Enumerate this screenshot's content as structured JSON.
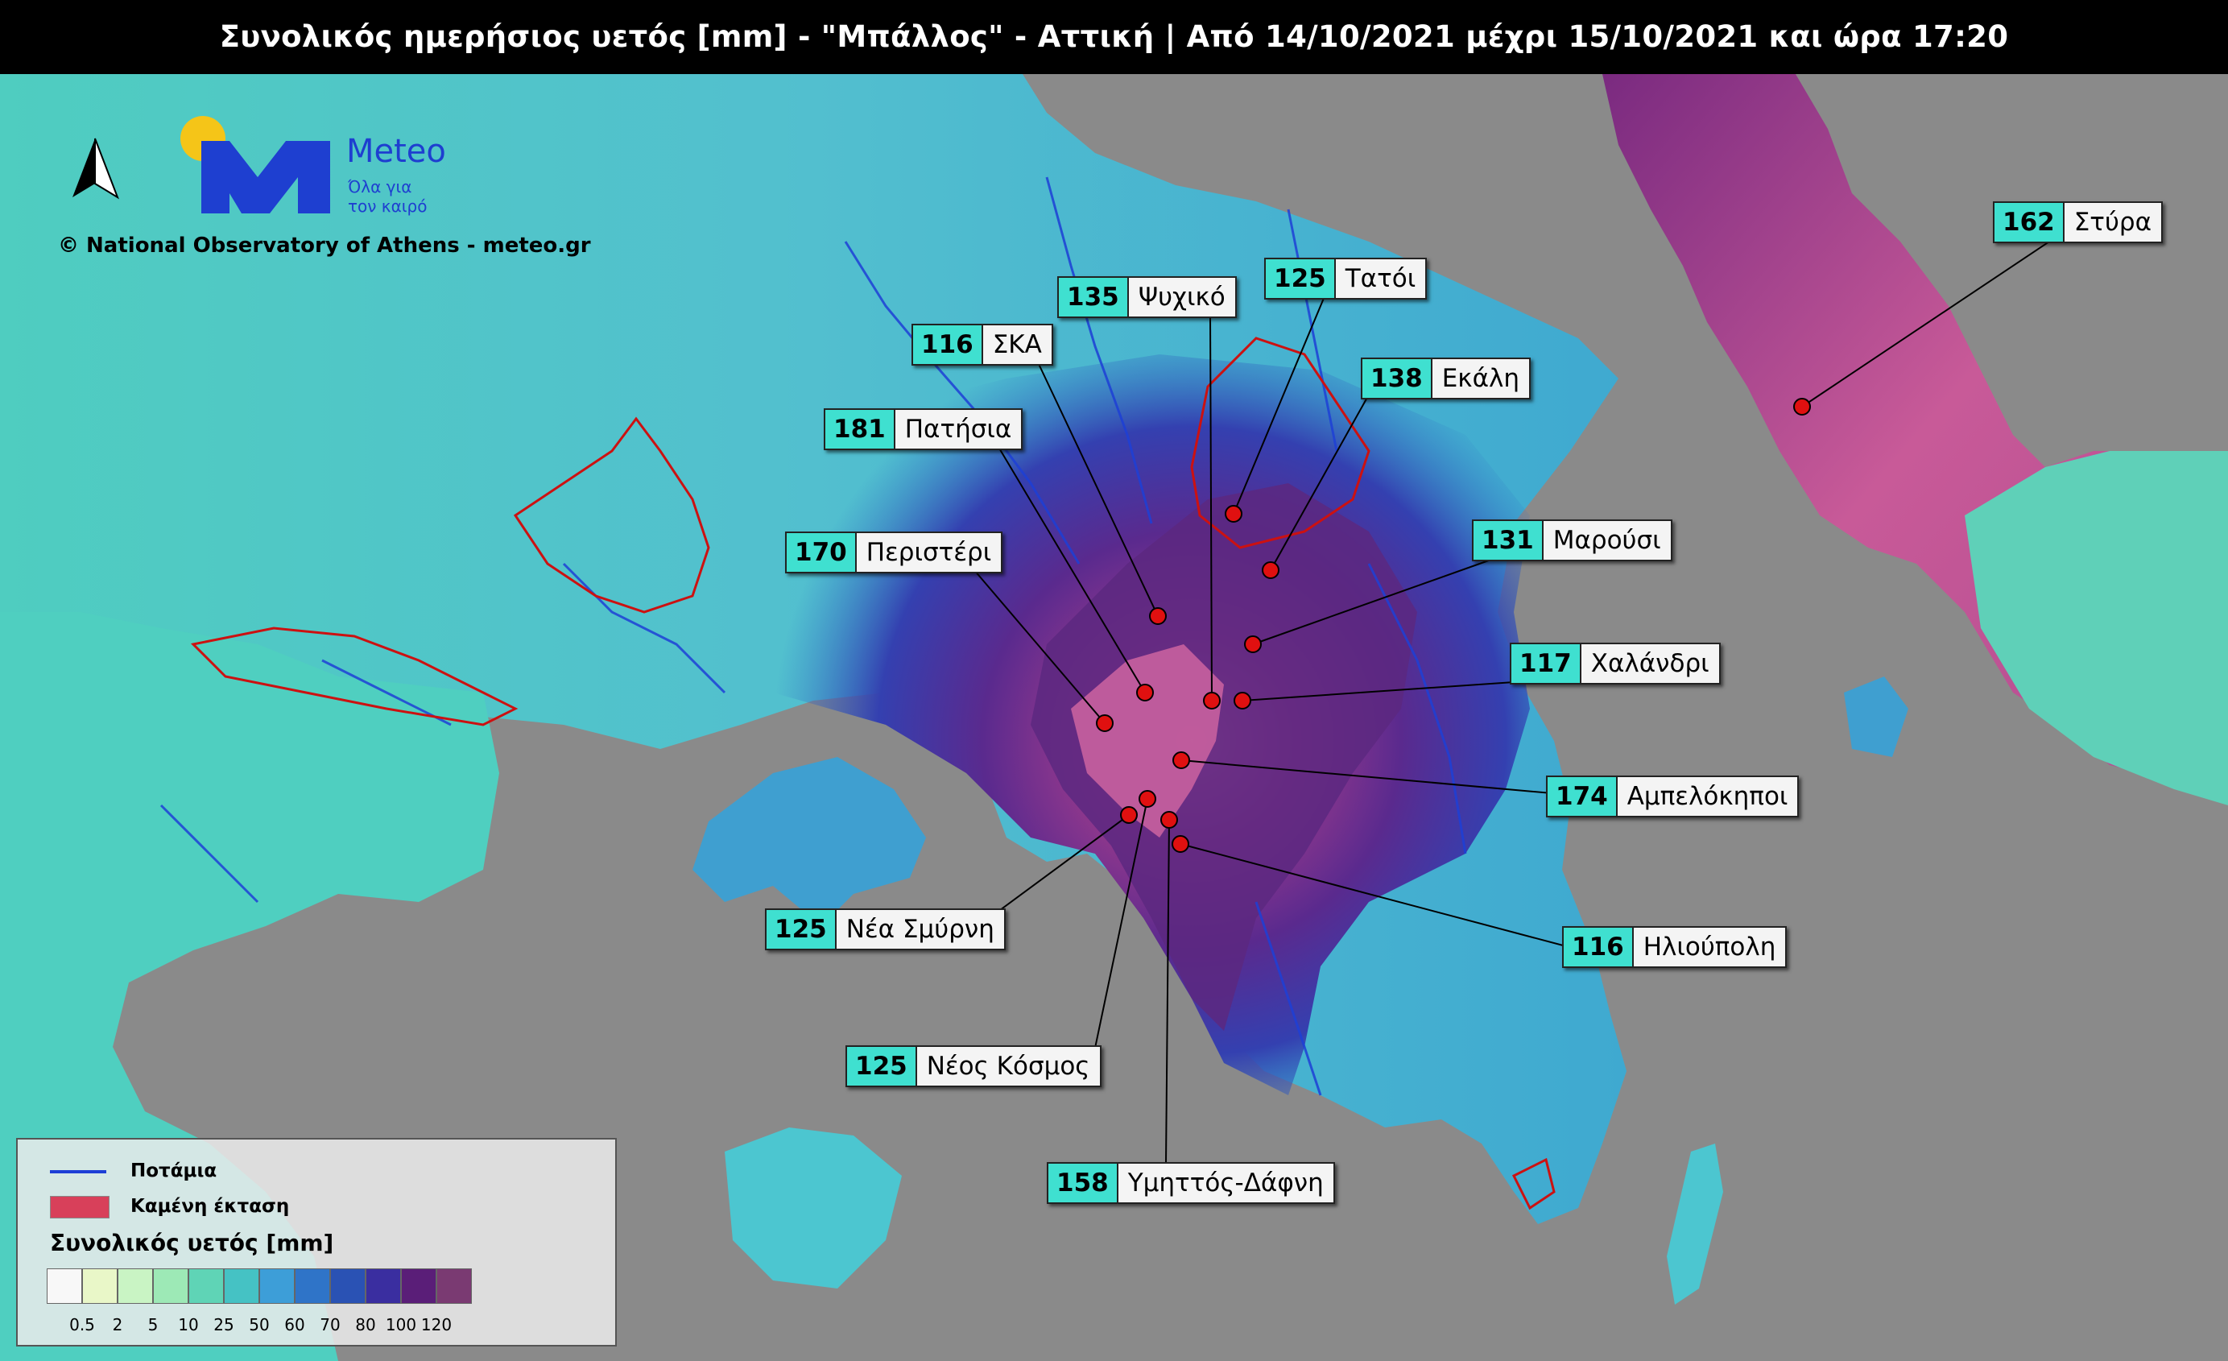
{
  "title": "Συνολικός ημερήσιος υετός [mm] - \"Μπάλλος\" - Αττική | Από 14/10/2021 μέχρι 15/10/2021 και ώρα 17:20",
  "branding": {
    "logo_name": "Meteo",
    "slogan": "Όλα για τον καιρό",
    "copyright": "© National Observatory of Athens - meteo.gr"
  },
  "legend": {
    "rivers_label": "Ποτάμια",
    "burned_label": "Καμένη έκταση",
    "scale_title": "Συνολικός υετός [mm]",
    "scale": [
      {
        "tick": "0.5",
        "color": "#f8f8f8"
      },
      {
        "tick": "2",
        "color": "#e9f7c8"
      },
      {
        "tick": "5",
        "color": "#c9f4c4"
      },
      {
        "tick": "10",
        "color": "#9de9b6"
      },
      {
        "tick": "25",
        "color": "#5fd4b6"
      },
      {
        "tick": "50",
        "color": "#45c2c4"
      },
      {
        "tick": "60",
        "color": "#3d9ed8"
      },
      {
        "tick": "70",
        "color": "#2f74c8"
      },
      {
        "tick": "80",
        "color": "#2a52b4"
      },
      {
        "tick": "100",
        "color": "#3a2ea0"
      },
      {
        "tick": "120",
        "color": "#5a1e78"
      },
      {
        "tick": "",
        "color": "#7a3a72"
      }
    ]
  },
  "stations": [
    {
      "value": "162",
      "name": "Στύρα"
    },
    {
      "value": "125",
      "name": "Τατόι"
    },
    {
      "value": "135",
      "name": "Ψυχικό"
    },
    {
      "value": "116",
      "name": "ΣΚΑ"
    },
    {
      "value": "138",
      "name": "Εκάλη"
    },
    {
      "value": "181",
      "name": "Πατήσια"
    },
    {
      "value": "131",
      "name": "Μαρούσι"
    },
    {
      "value": "170",
      "name": "Περιστέρι"
    },
    {
      "value": "117",
      "name": "Χαλάνδρι"
    },
    {
      "value": "174",
      "name": "Αμπελόκηποι"
    },
    {
      "value": "125",
      "name": "Νέα Σμύρνη"
    },
    {
      "value": "116",
      "name": "Ηλιούπολη"
    },
    {
      "value": "125",
      "name": "Νέος Κόσμος"
    },
    {
      "value": "158",
      "name": "Υμηττός-Δάφνη"
    }
  ],
  "colors": {
    "sea": "#8a8a8a",
    "river": "#1d3fd6",
    "burned_outline": "#cc1111",
    "station_dot": "#e01010",
    "label_value_bg": "#3fe0d0"
  }
}
